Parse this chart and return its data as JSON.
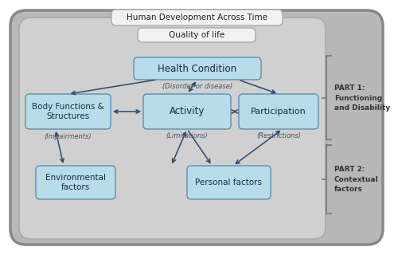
{
  "fig_width": 4.74,
  "fig_height": 3.0,
  "outer_fill": "#b8b8b8",
  "outer_edge": "#888888",
  "inner_fill": "#d0d0d0",
  "inner_edge": "#aaaaaa",
  "box_fill": "#b8dcea",
  "box_edge": "#5a90b0",
  "white_fill": "#f2f2f2",
  "white_edge": "#aaaaaa",
  "arrow_color": "#2a4a70",
  "text_color": "#1a2a4a",
  "italic_color": "#445566",
  "brace_color": "#777777",
  "title_outer": "Human Development Across Time",
  "title_inner": "Quality of life",
  "box1_text": "Health Condition",
  "box1_sub": "(Disorder or disease)",
  "box2_text": "Body Functions &\nStructures",
  "box2_sub": "(Impairments)",
  "box3_text": "Activity",
  "box3_sub": "(Limitations)",
  "box4_text": "Participation",
  "box4_sub": "(Restrictions)",
  "box5_text": "Environmental\nfactors",
  "box6_text": "Personal factors",
  "part1_text": "PART 1:\nFunctioning\nand Disability",
  "part2_text": "PART 2:\nContextual\nfactors",
  "xlim": [
    0,
    474
  ],
  "ylim": [
    0,
    300
  ]
}
